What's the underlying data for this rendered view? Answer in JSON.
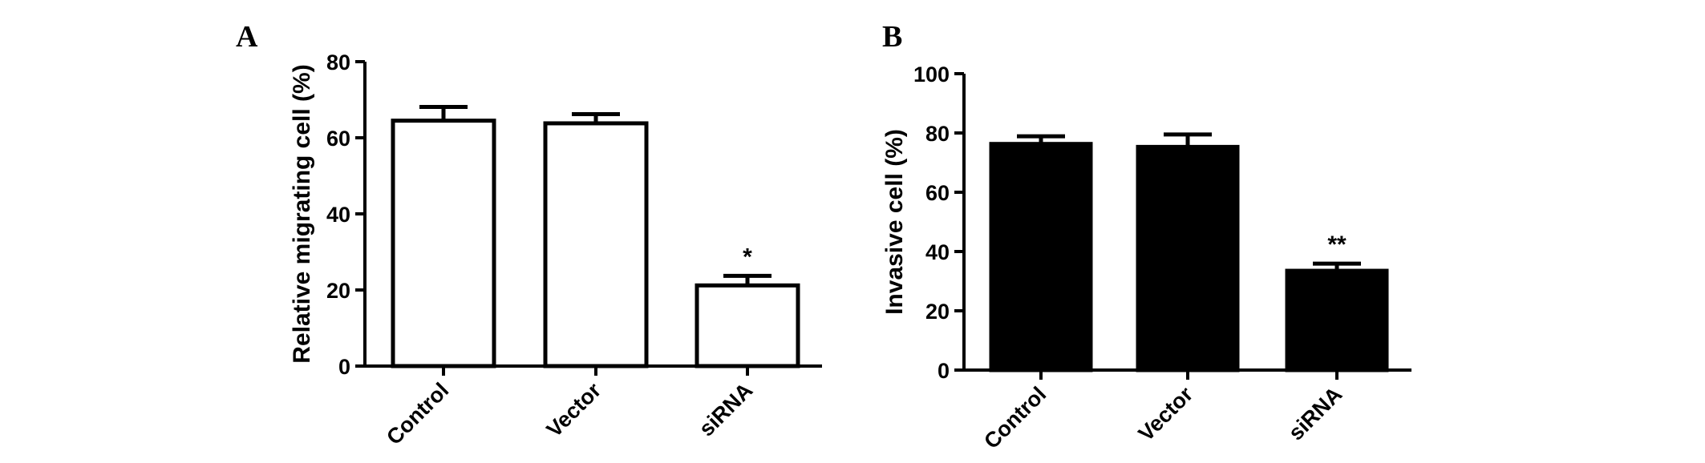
{
  "panels": [
    {
      "letter": "A"
    },
    {
      "letter": "B"
    }
  ],
  "chart_data": [
    {
      "type": "bar",
      "panel": "A",
      "categories": [
        "Control",
        "Vector",
        "siRNA"
      ],
      "values": [
        64.5,
        63.8,
        21.2
      ],
      "errors": [
        3.6,
        2.4,
        2.5
      ],
      "significance": [
        "",
        "",
        "*"
      ],
      "ylabel": "Relative migrating cell (%)",
      "xlabel": "",
      "ylim": [
        0,
        80
      ],
      "yticks": [
        0,
        20,
        40,
        60,
        80
      ],
      "bar_color": "#ffffff",
      "bar_edge_color": "#000000",
      "grid": false
    },
    {
      "type": "bar",
      "panel": "B",
      "categories": [
        "Control",
        "Vector",
        "siRNA"
      ],
      "values": [
        76.3,
        75.3,
        33.5
      ],
      "errors": [
        2.6,
        4.2,
        2.4
      ],
      "significance": [
        "",
        "",
        "**"
      ],
      "ylabel": "Invasive cell (%)",
      "xlabel": "",
      "ylim": [
        0,
        100
      ],
      "yticks": [
        0,
        20,
        40,
        60,
        80,
        100
      ],
      "bar_color": "#000000",
      "bar_edge_color": "#000000",
      "grid": false
    }
  ]
}
